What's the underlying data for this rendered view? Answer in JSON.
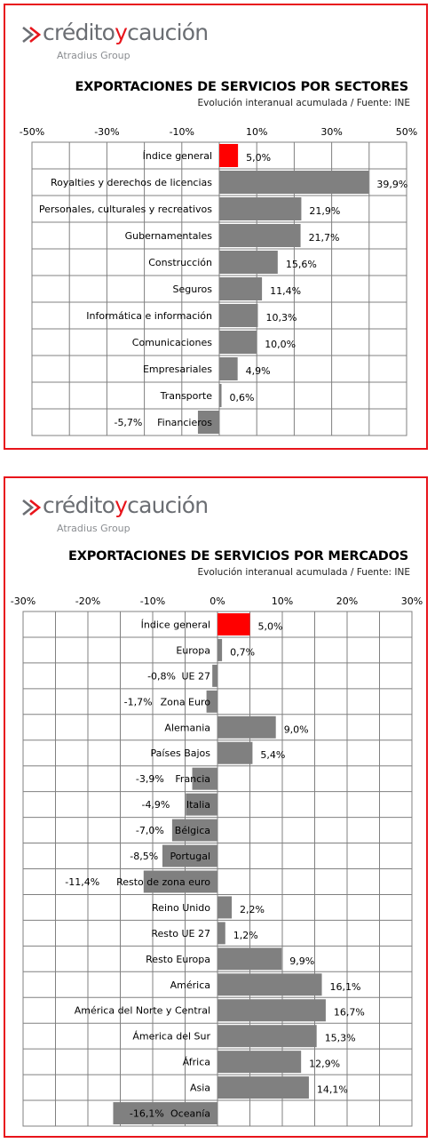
{
  "brand": {
    "name": "créditoycaución",
    "word_credito": "crédito",
    "word_y": "y",
    "word_caucion": "caución",
    "group": "Atradius Group",
    "colors": {
      "red": "#e8141b",
      "gray": "#6b6e73"
    }
  },
  "chart_data": [
    {
      "type": "bar",
      "orientation": "horizontal",
      "title": "EXPORTACIONES DE SERVICIOS POR SECTORES",
      "subtitle": "Evolución interanual acumulada  / Fuente: INE",
      "xlim": [
        -50,
        50
      ],
      "ticks": [
        -50,
        -30,
        -10,
        10,
        30,
        50
      ],
      "tick_labels": [
        "-50%",
        "-30%",
        "-10%",
        "10%",
        "30%",
        "50%"
      ],
      "grid": true,
      "categories": [
        "Índice general",
        "Royalties y derechos de licencias",
        "Personales, culturales y recreativos",
        "Gubernamentales",
        "Construcción",
        "Seguros",
        "Informática e información",
        "Comunicaciones",
        "Empresariales",
        "Transporte",
        "Financieros"
      ],
      "values": [
        5.0,
        39.9,
        21.9,
        21.7,
        15.6,
        11.4,
        10.3,
        10.0,
        4.9,
        0.6,
        -5.7
      ],
      "value_labels": [
        "5,0%",
        "39,9%",
        "21,9%",
        "21,7%",
        "15,6%",
        "11,4%",
        "10,3%",
        "10,0%",
        "4,9%",
        "0,6%",
        "-5,7%"
      ],
      "highlight": [
        0
      ],
      "colors": {
        "bar": "#808080",
        "highlight": "#ff0000"
      }
    },
    {
      "type": "bar",
      "orientation": "horizontal",
      "title": "EXPORTACIONES DE SERVICIOS POR MERCADOS",
      "subtitle": "Evolución interanual acumulada  / Fuente: INE",
      "xlim": [
        -30,
        30
      ],
      "ticks": [
        -30,
        -20,
        -10,
        0,
        10,
        20,
        30
      ],
      "tick_labels": [
        "-30%",
        "-20%",
        "-10%",
        "0%",
        "10%",
        "20%",
        "30%"
      ],
      "grid": true,
      "categories": [
        "Índice general",
        "Europa",
        "UE 27",
        "Zona Euro",
        "Alemania",
        "Países Bajos",
        "Francia",
        "Italia",
        "Bélgica",
        "Portugal",
        "Resto de zona euro",
        "Reino Unido",
        "Resto UE 27",
        "Resto Europa",
        "América",
        "América del Norte y Central",
        "Ámerica del Sur",
        "África",
        "Asia",
        "Oceanía"
      ],
      "values": [
        5.0,
        0.7,
        -0.8,
        -1.7,
        9.0,
        5.4,
        -3.9,
        -4.9,
        -7.0,
        -8.5,
        -11.4,
        2.2,
        1.2,
        9.9,
        16.1,
        16.7,
        15.3,
        12.9,
        14.1,
        -16.1
      ],
      "value_labels": [
        "5,0%",
        "0,7%",
        "-0,8%",
        "-1,7%",
        "9,0%",
        "5,4%",
        "-3,9%",
        "-4,9%",
        "-7,0%",
        "-8,5%",
        "-11,4%",
        "2,2%",
        "1,2%",
        "9,9%",
        "16,1%",
        "16,7%",
        "15,3%",
        "12,9%",
        "14,1%",
        "-16,1%"
      ],
      "highlight": [
        0
      ],
      "colors": {
        "bar": "#808080",
        "highlight": "#ff0000"
      }
    }
  ]
}
